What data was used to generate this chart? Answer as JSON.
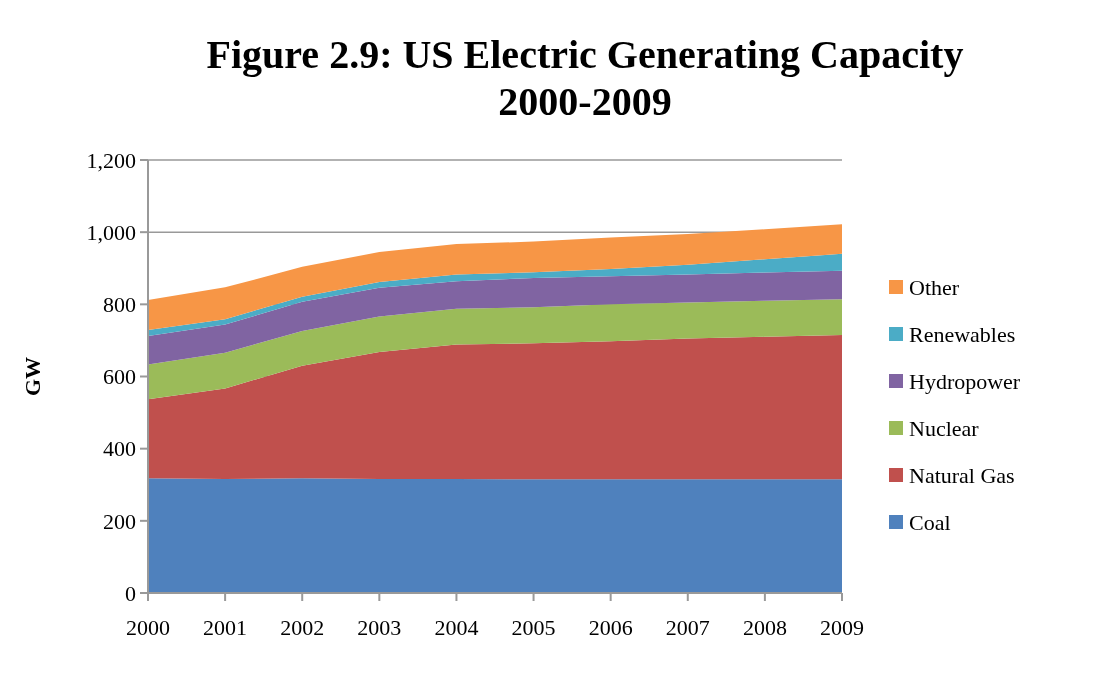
{
  "chart_data": {
    "type": "area",
    "stacked": true,
    "title": "Figure 2.9: US Electric Generating Capacity 2000-2009",
    "ylabel": "GW",
    "x": [
      2000,
      2001,
      2002,
      2003,
      2004,
      2005,
      2006,
      2007,
      2008,
      2009
    ],
    "xlim": [
      2000,
      2009
    ],
    "xticks": [
      2000,
      2001,
      2002,
      2003,
      2004,
      2005,
      2006,
      2007,
      2008,
      2009
    ],
    "ylim": [
      0,
      1200
    ],
    "yticks": [
      {
        "value": 0,
        "label": "0"
      },
      {
        "value": 200,
        "label": "200"
      },
      {
        "value": 400,
        "label": "400"
      },
      {
        "value": 600,
        "label": "600"
      },
      {
        "value": 800,
        "label": "800"
      },
      {
        "value": 1000,
        "label": "1,000"
      },
      {
        "value": 1200,
        "label": "1,200"
      }
    ],
    "grid": "y",
    "legend": "right",
    "series": [
      {
        "name": "Coal",
        "color": "#4f81bd",
        "values": [
          318,
          316,
          318,
          316,
          316,
          315,
          315,
          315,
          315,
          315
        ]
      },
      {
        "name": "Natural Gas",
        "color": "#c0504d",
        "values": [
          219,
          251,
          312,
          352,
          373,
          377,
          383,
          390,
          395,
          400
        ]
      },
      {
        "name": "Nuclear",
        "color": "#9bbb59",
        "values": [
          96,
          99,
          96,
          98,
          99,
          100,
          102,
          100,
          100,
          99
        ]
      },
      {
        "name": "Hydropower",
        "color": "#8064a2",
        "values": [
          79,
          78,
          81,
          80,
          76,
          81,
          78,
          78,
          78,
          79
        ]
      },
      {
        "name": "Renewables",
        "color": "#4bacc6",
        "values": [
          17,
          15,
          14,
          16,
          19,
          16,
          20,
          27,
          37,
          47
        ]
      },
      {
        "name": "Other",
        "color": "#f79646",
        "values": [
          83,
          88,
          83,
          83,
          84,
          85,
          87,
          85,
          83,
          82
        ]
      }
    ]
  }
}
